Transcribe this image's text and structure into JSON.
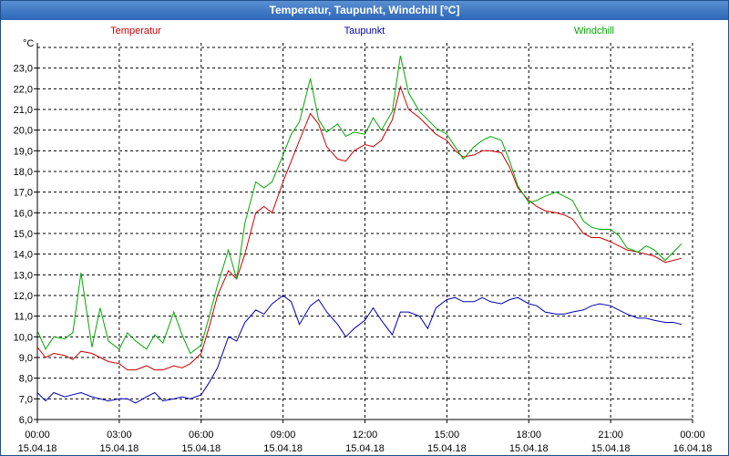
{
  "window_title": "Temperatur, Taupunkt, Windchill [°C]",
  "chart_data": {
    "type": "line",
    "title": "Temperatur, Taupunkt, Windchill [°C]",
    "ylabel": "°C",
    "xlabel": "",
    "ylim": [
      6.0,
      24.0
    ],
    "xlim": [
      0,
      24
    ],
    "grid": true,
    "y_ticks": [
      "6,0",
      "7,0",
      "8,0",
      "9,0",
      "10,0",
      "11,0",
      "12,0",
      "13,0",
      "14,0",
      "15,0",
      "16,0",
      "17,0",
      "18,0",
      "19,0",
      "20,0",
      "21,0",
      "22,0",
      "23,0"
    ],
    "x_ticks": [
      {
        "time": "00:00",
        "date": "15.04.18"
      },
      {
        "time": "03:00",
        "date": "15.04.18"
      },
      {
        "time": "06:00",
        "date": "15.04.18"
      },
      {
        "time": "09:00",
        "date": "15.04.18"
      },
      {
        "time": "12:00",
        "date": "15.04.18"
      },
      {
        "time": "15:00",
        "date": "15.04.18"
      },
      {
        "time": "18:00",
        "date": "15.04.18"
      },
      {
        "time": "21:00",
        "date": "15.04.18"
      },
      {
        "time": "00:00",
        "date": "16.04.18"
      }
    ],
    "series": [
      {
        "name": "Temperatur",
        "color": "#cc0000",
        "legend_pos": "top-left",
        "x": [
          0,
          0.3,
          0.6,
          1,
          1.3,
          1.6,
          2,
          2.3,
          2.6,
          3,
          3.3,
          3.6,
          4,
          4.3,
          4.6,
          5,
          5.3,
          5.6,
          6,
          6.3,
          6.6,
          7,
          7.3,
          7.6,
          8,
          8.3,
          8.6,
          9,
          9.3,
          9.6,
          10,
          10.3,
          10.6,
          11,
          11.3,
          11.6,
          12,
          12.3,
          12.6,
          13,
          13.3,
          13.6,
          14,
          14.3,
          14.6,
          15,
          15.3,
          15.6,
          16,
          16.3,
          16.6,
          17,
          17.3,
          17.6,
          18,
          18.3,
          18.6,
          19,
          19.3,
          19.6,
          20,
          20.3,
          20.6,
          21,
          21.3,
          21.6,
          22,
          22.3,
          22.6,
          23,
          23.3,
          23.6
        ],
        "values": [
          9.5,
          9.0,
          9.2,
          9.1,
          8.9,
          9.3,
          9.2,
          9.0,
          8.8,
          8.7,
          8.4,
          8.4,
          8.6,
          8.4,
          8.4,
          8.6,
          8.5,
          8.7,
          9.2,
          10.5,
          12.0,
          13.2,
          12.8,
          14.0,
          16.0,
          16.3,
          16.0,
          17.5,
          18.5,
          19.5,
          20.8,
          20.3,
          19.2,
          18.6,
          18.5,
          19.0,
          19.3,
          19.2,
          19.5,
          20.5,
          22.1,
          21.0,
          20.6,
          20.2,
          19.8,
          19.5,
          19.0,
          18.7,
          18.8,
          19.0,
          19.0,
          18.9,
          18.2,
          17.2,
          16.6,
          16.3,
          16.1,
          16.0,
          15.9,
          15.7,
          15.0,
          14.8,
          14.8,
          14.6,
          14.4,
          14.2,
          14.1,
          14.0,
          13.9,
          13.6,
          13.7,
          13.8
        ]
      },
      {
        "name": "Taupunkt",
        "color": "#0000b0",
        "legend_pos": "top-center",
        "x": [
          0,
          0.3,
          0.6,
          1,
          1.3,
          1.6,
          2,
          2.3,
          2.6,
          3,
          3.3,
          3.6,
          4,
          4.3,
          4.6,
          5,
          5.3,
          5.6,
          6,
          6.3,
          6.6,
          7,
          7.3,
          7.6,
          8,
          8.3,
          8.6,
          9,
          9.3,
          9.6,
          10,
          10.3,
          10.6,
          11,
          11.3,
          11.6,
          12,
          12.3,
          12.6,
          13,
          13.3,
          13.6,
          14,
          14.3,
          14.6,
          15,
          15.3,
          15.6,
          16,
          16.3,
          16.6,
          17,
          17.3,
          17.6,
          18,
          18.3,
          18.6,
          19,
          19.3,
          19.6,
          20,
          20.3,
          20.6,
          21,
          21.3,
          21.6,
          22,
          22.3,
          22.6,
          23,
          23.3,
          23.6
        ],
        "values": [
          7.3,
          6.9,
          7.3,
          7.1,
          7.2,
          7.3,
          7.1,
          7.0,
          6.9,
          7.0,
          7.0,
          6.8,
          7.1,
          7.3,
          6.9,
          7.0,
          7.1,
          7.0,
          7.2,
          7.8,
          8.5,
          10.0,
          9.8,
          10.7,
          11.3,
          11.1,
          11.6,
          12.0,
          11.7,
          10.6,
          11.5,
          11.8,
          11.2,
          10.6,
          10.0,
          10.4,
          10.8,
          11.4,
          10.8,
          10.1,
          11.2,
          11.2,
          11.0,
          10.4,
          11.4,
          11.8,
          11.9,
          11.7,
          11.7,
          11.9,
          11.7,
          11.6,
          11.8,
          11.9,
          11.6,
          11.5,
          11.2,
          11.1,
          11.1,
          11.2,
          11.3,
          11.5,
          11.6,
          11.5,
          11.3,
          11.1,
          10.9,
          10.9,
          10.8,
          10.7,
          10.7,
          10.6
        ]
      },
      {
        "name": "Windchill",
        "color": "#00aa00",
        "legend_pos": "top-right",
        "x": [
          0,
          0.3,
          0.6,
          1,
          1.3,
          1.6,
          2,
          2.3,
          2.6,
          3,
          3.3,
          3.6,
          4,
          4.3,
          4.6,
          5,
          5.3,
          5.6,
          6,
          6.3,
          6.6,
          7,
          7.3,
          7.6,
          8,
          8.3,
          8.6,
          9,
          9.3,
          9.6,
          10,
          10.3,
          10.6,
          11,
          11.3,
          11.6,
          12,
          12.3,
          12.6,
          13,
          13.3,
          13.6,
          14,
          14.3,
          14.6,
          15,
          15.3,
          15.6,
          16,
          16.3,
          16.6,
          17,
          17.3,
          17.6,
          18,
          18.3,
          18.6,
          19,
          19.3,
          19.6,
          20,
          20.3,
          20.6,
          21,
          21.3,
          21.6,
          22,
          22.3,
          22.6,
          23,
          23.3,
          23.6
        ],
        "values": [
          10.3,
          9.4,
          10.0,
          9.9,
          10.2,
          13.1,
          9.5,
          11.4,
          9.8,
          9.4,
          10.2,
          9.8,
          9.4,
          10.1,
          9.7,
          11.2,
          10.1,
          9.2,
          9.6,
          11.0,
          12.5,
          14.2,
          12.8,
          15.5,
          17.5,
          17.2,
          17.5,
          18.8,
          19.8,
          20.4,
          22.5,
          20.5,
          19.9,
          20.3,
          19.7,
          19.9,
          19.8,
          20.6,
          20.0,
          20.9,
          23.6,
          21.8,
          20.9,
          20.5,
          20.1,
          19.8,
          19.2,
          18.6,
          19.2,
          19.5,
          19.7,
          19.5,
          18.5,
          17.3,
          16.5,
          16.6,
          16.8,
          17.0,
          16.8,
          16.6,
          15.6,
          15.3,
          15.2,
          15.2,
          14.9,
          14.3,
          14.1,
          14.4,
          14.2,
          13.7,
          14.1,
          14.5
        ]
      }
    ]
  }
}
